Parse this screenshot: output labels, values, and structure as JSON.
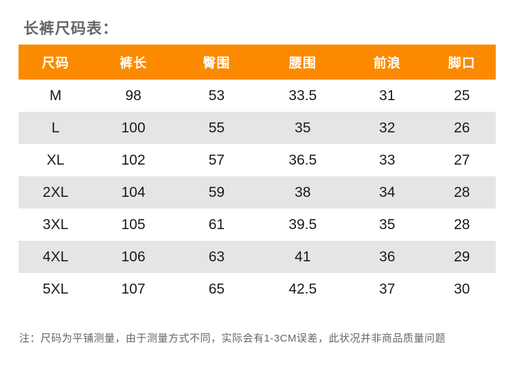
{
  "title": "长裤尺码表：",
  "table": {
    "headers": [
      "尺码",
      "裤长",
      "臀围",
      "腰围",
      "前浪",
      "脚口"
    ],
    "rows": [
      [
        "M",
        "98",
        "53",
        "33.5",
        "31",
        "25"
      ],
      [
        "L",
        "100",
        "55",
        "35",
        "32",
        "26"
      ],
      [
        "XL",
        "102",
        "57",
        "36.5",
        "33",
        "27"
      ],
      [
        "2XL",
        "104",
        "59",
        "38",
        "34",
        "28"
      ],
      [
        "3XL",
        "105",
        "61",
        "39.5",
        "35",
        "28"
      ],
      [
        "4XL",
        "106",
        "63",
        "41",
        "36",
        "29"
      ],
      [
        "5XL",
        "107",
        "65",
        "42.5",
        "37",
        "30"
      ]
    ]
  },
  "note": "注：尺码为平铺测量，由于测量方式不同，实际会有1-3CM误差，此状况并非商品质量问题",
  "colors": {
    "header_bg": "#fc8a00",
    "header_text": "#ffffff",
    "row_alt_bg": "#e5e5e5",
    "cell_text": "#1a1a1a",
    "title_text": "#666666",
    "note_text": "#666666"
  }
}
